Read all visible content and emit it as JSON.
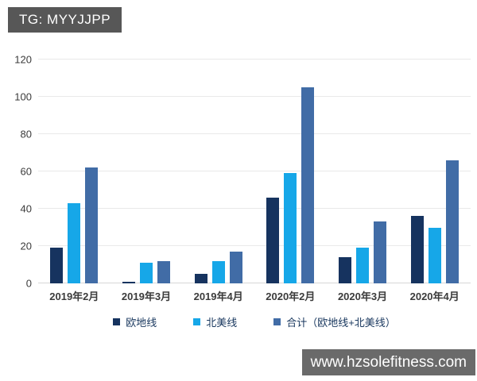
{
  "badges": {
    "top_left": "TG: MYYJJPP",
    "bottom_right": "www.hzsolefitness.com"
  },
  "colors": {
    "series_navy": "#16335f",
    "series_cyan": "#16a7e8",
    "series_steel": "#416ca6",
    "top_badge_bg": "#575757",
    "bottom_badge_bg": "#6a6a6a",
    "legend_text": "#17365d",
    "axis_text": "#3b3b3b",
    "gridline": "#e9e9e9"
  },
  "chart_data": {
    "type": "bar",
    "title": "",
    "xlabel": "",
    "ylabel": "",
    "categories": [
      "2019年2月",
      "2019年3月",
      "2019年4月",
      "2020年2月",
      "2020年3月",
      "2020年4月"
    ],
    "series": [
      {
        "name": "欧地线",
        "color_key": "series_navy",
        "values": [
          19,
          1,
          5,
          46,
          14,
          36
        ]
      },
      {
        "name": "北美线",
        "color_key": "series_cyan",
        "values": [
          43,
          11,
          12,
          59,
          19,
          30
        ]
      },
      {
        "name": "合计（欧地线+北美线）",
        "color_key": "series_steel",
        "values": [
          62,
          12,
          17,
          105,
          33,
          66
        ]
      }
    ],
    "ylim": [
      0,
      120
    ],
    "yticks": [
      0,
      20,
      40,
      60,
      80,
      100,
      120
    ],
    "grid": true,
    "legend_position": "bottom"
  }
}
